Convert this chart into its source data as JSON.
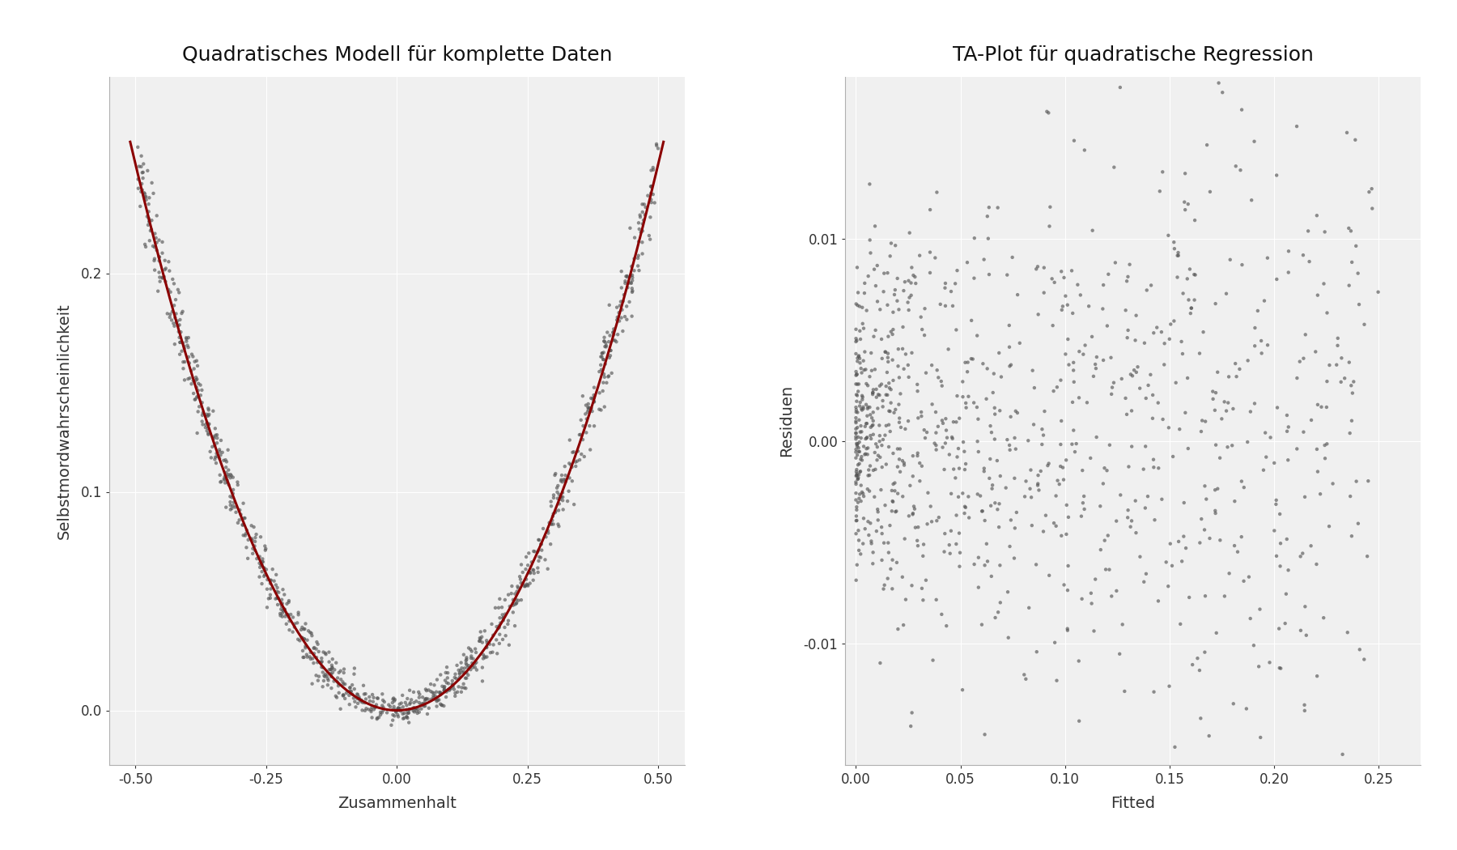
{
  "left_title": "Quadratisches Modell für komplette Daten",
  "right_title": "TA-Plot für quadratische Regression",
  "left_xlabel": "Zusammenhalt",
  "left_ylabel": "Selbstmordwahrscheinlichkeit",
  "right_xlabel": "Fitted",
  "right_ylabel": "Residuen",
  "left_xlim": [
    -0.55,
    0.55
  ],
  "left_ylim": [
    -0.025,
    0.29
  ],
  "left_xticks": [
    -0.5,
    -0.25,
    0.0,
    0.25,
    0.5
  ],
  "left_yticks": [
    0.0,
    0.1,
    0.2
  ],
  "right_xlim": [
    -0.005,
    0.27
  ],
  "right_ylim": [
    -0.016,
    0.018
  ],
  "right_xticks": [
    0.0,
    0.05,
    0.1,
    0.15,
    0.2,
    0.25
  ],
  "right_yticks": [
    -0.01,
    0.0,
    0.01
  ],
  "scatter_color": "#555555",
  "scatter_alpha": 0.65,
  "scatter_size": 10,
  "line_color": "#8B0000",
  "line_width": 2.2,
  "background_color": "#ffffff",
  "panel_bg_color": "#f0f0f0",
  "grid_color": "#ffffff",
  "grid_linewidth": 0.8,
  "title_fontsize": 18,
  "label_fontsize": 14,
  "tick_fontsize": 12,
  "n_points": 1000,
  "seed": 42,
  "quad_coef": 1.0,
  "noise_base": 0.003,
  "noise_hetero": 0.012
}
